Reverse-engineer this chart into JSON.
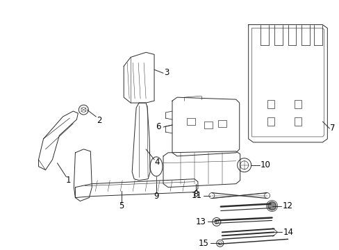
{
  "background_color": "#ffffff",
  "fig_width": 4.89,
  "fig_height": 3.6,
  "dpi": 100,
  "line_color": "#2a2a2a",
  "line_width": 0.7,
  "label_fontsize": 8.5
}
